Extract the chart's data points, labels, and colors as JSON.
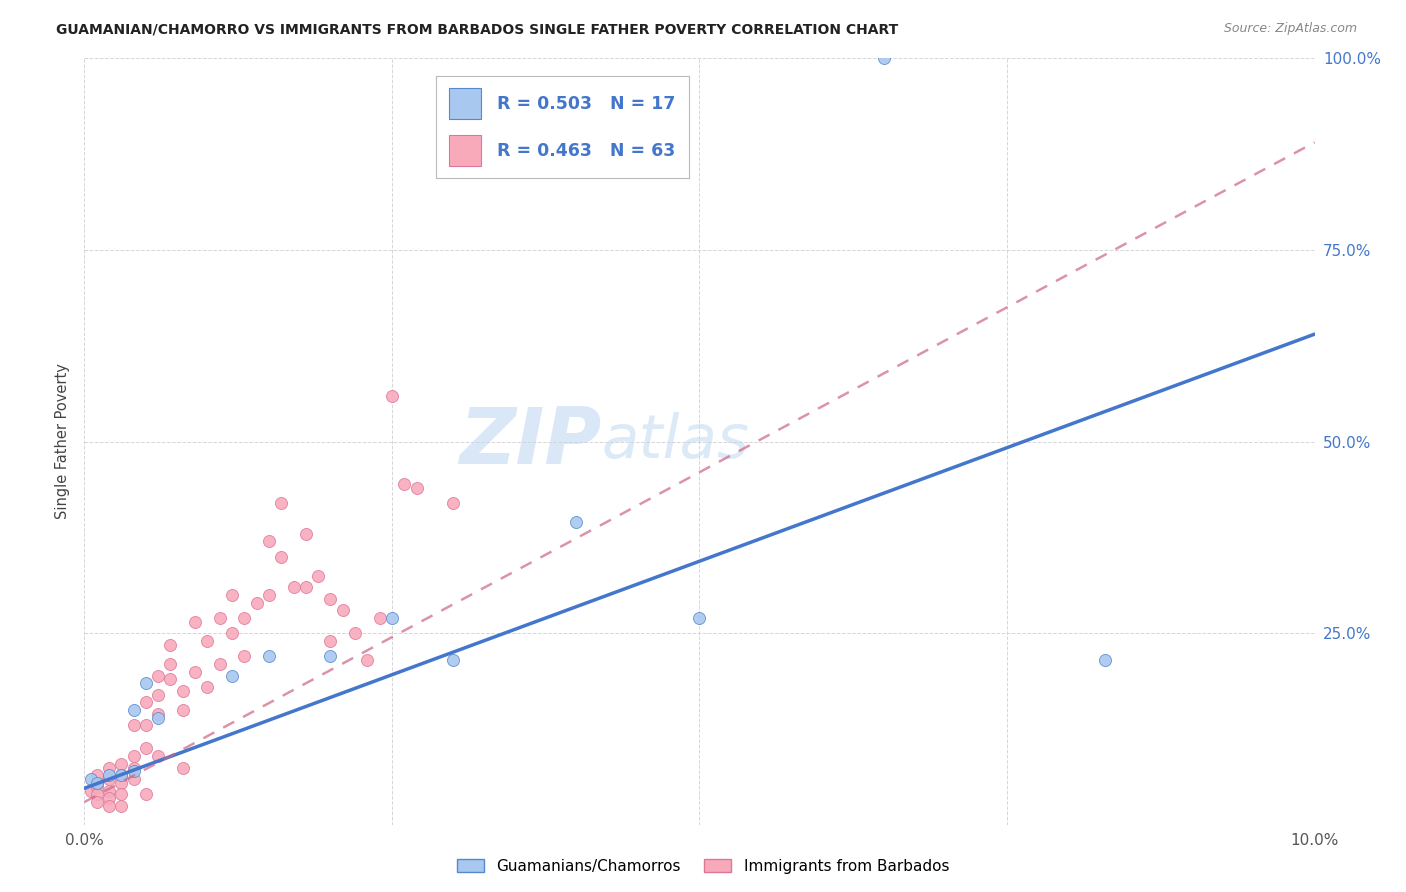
{
  "title": "GUAMANIAN/CHAMORRO VS IMMIGRANTS FROM BARBADOS SINGLE FATHER POVERTY CORRELATION CHART",
  "source": "Source: ZipAtlas.com",
  "ylabel": "Single Father Poverty",
  "xlim": [
    0,
    0.1
  ],
  "ylim": [
    0,
    1.0
  ],
  "legend1_r": "0.503",
  "legend1_n": "17",
  "legend2_r": "0.463",
  "legend2_n": "63",
  "blue_fill": "#a8c8f0",
  "blue_edge": "#5588cc",
  "pink_fill": "#f8aabb",
  "pink_edge": "#dd7799",
  "blue_line": "#4477cc",
  "pink_line": "#cc6688",
  "text_color": "#4477cc",
  "watermark1": "ZIP",
  "watermark2": "atlas",
  "guam_x": [
    0.0005,
    0.001,
    0.002,
    0.003,
    0.004,
    0.004,
    0.005,
    0.006,
    0.012,
    0.015,
    0.02,
    0.025,
    0.03,
    0.04,
    0.05,
    0.065,
    0.083
  ],
  "guam_y": [
    0.06,
    0.055,
    0.065,
    0.065,
    0.07,
    0.15,
    0.185,
    0.14,
    0.195,
    0.22,
    0.22,
    0.27,
    0.215,
    0.395,
    0.27,
    1.0,
    0.215
  ],
  "barb_x": [
    0.0005,
    0.001,
    0.001,
    0.001,
    0.001,
    0.001,
    0.002,
    0.002,
    0.002,
    0.002,
    0.002,
    0.003,
    0.003,
    0.003,
    0.003,
    0.003,
    0.004,
    0.004,
    0.004,
    0.004,
    0.005,
    0.005,
    0.005,
    0.005,
    0.006,
    0.006,
    0.006,
    0.006,
    0.007,
    0.007,
    0.007,
    0.008,
    0.008,
    0.008,
    0.009,
    0.009,
    0.01,
    0.01,
    0.011,
    0.011,
    0.012,
    0.012,
    0.013,
    0.013,
    0.014,
    0.015,
    0.015,
    0.016,
    0.016,
    0.017,
    0.018,
    0.018,
    0.019,
    0.02,
    0.02,
    0.021,
    0.022,
    0.023,
    0.024,
    0.025,
    0.026,
    0.027,
    0.03
  ],
  "barb_y": [
    0.045,
    0.055,
    0.05,
    0.04,
    0.065,
    0.03,
    0.075,
    0.06,
    0.045,
    0.035,
    0.025,
    0.08,
    0.065,
    0.055,
    0.04,
    0.025,
    0.13,
    0.09,
    0.075,
    0.06,
    0.16,
    0.13,
    0.1,
    0.04,
    0.195,
    0.17,
    0.145,
    0.09,
    0.235,
    0.21,
    0.19,
    0.175,
    0.15,
    0.075,
    0.265,
    0.2,
    0.24,
    0.18,
    0.27,
    0.21,
    0.3,
    0.25,
    0.27,
    0.22,
    0.29,
    0.37,
    0.3,
    0.42,
    0.35,
    0.31,
    0.38,
    0.31,
    0.325,
    0.295,
    0.24,
    0.28,
    0.25,
    0.215,
    0.27,
    0.56,
    0.445,
    0.44,
    0.42
  ],
  "blue_line_x0": 0.0,
  "blue_line_y0": 0.048,
  "blue_line_x1": 0.1,
  "blue_line_y1": 0.64,
  "pink_line_x0": 0.0,
  "pink_line_y0": 0.03,
  "pink_line_x1": 0.1,
  "pink_line_y1": 0.89
}
